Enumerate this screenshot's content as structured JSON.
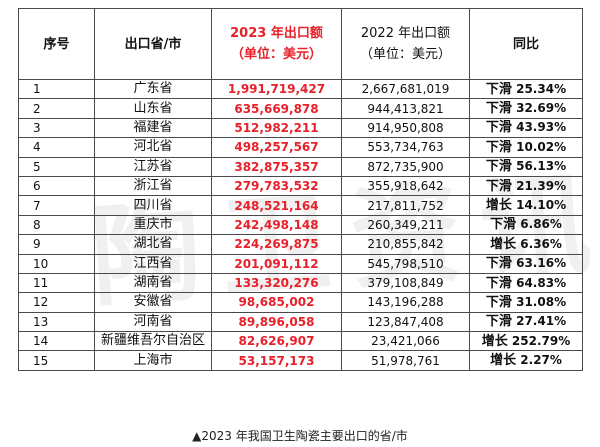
{
  "header": {
    "idx": "序号",
    "province": "出口省/市",
    "y2023_line1": "2023 年出口额",
    "y2023_line2": "（单位：美元）",
    "y2022_line1": "2022 年出口额",
    "y2022_line2": "（单位：美元）",
    "yoy": "同比"
  },
  "rows": [
    {
      "idx": "1",
      "province": "广东省",
      "v2023": "1,991,719,427",
      "v2022": "2,667,681,019",
      "dir": "下滑",
      "pct": "25.34%"
    },
    {
      "idx": "2",
      "province": "山东省",
      "v2023": "635,669,878",
      "v2022": "944,413,821",
      "dir": "下滑",
      "pct": "32.69%"
    },
    {
      "idx": "3",
      "province": "福建省",
      "v2023": "512,982,211",
      "v2022": "914,950,808",
      "dir": "下滑",
      "pct": "43.93%"
    },
    {
      "idx": "4",
      "province": "河北省",
      "v2023": "498,257,567",
      "v2022": "553,734,763",
      "dir": "下滑",
      "pct": "10.02%"
    },
    {
      "idx": "5",
      "province": "江苏省",
      "v2023": "382,875,357",
      "v2022": "872,735,900",
      "dir": "下滑",
      "pct": "56.13%"
    },
    {
      "idx": "6",
      "province": "浙江省",
      "v2023": "279,783,532",
      "v2022": "355,918,642",
      "dir": "下滑",
      "pct": "21.39%"
    },
    {
      "idx": "7",
      "province": "四川省",
      "v2023": "248,521,164",
      "v2022": "217,811,752",
      "dir": "增长",
      "pct": "14.10%"
    },
    {
      "idx": "8",
      "province": "重庆市",
      "v2023": "242,498,148",
      "v2022": "260,349,211",
      "dir": "下滑",
      "pct": "6.86%"
    },
    {
      "idx": "9",
      "province": "湖北省",
      "v2023": "224,269,875",
      "v2022": "210,855,842",
      "dir": "增长",
      "pct": "6.36%"
    },
    {
      "idx": "10",
      "province": "江西省",
      "v2023": "201,091,112",
      "v2022": "545,798,510",
      "dir": "下滑",
      "pct": "63.16%"
    },
    {
      "idx": "11",
      "province": "湖南省",
      "v2023": "133,320,276",
      "v2022": "379,108,849",
      "dir": "下滑",
      "pct": "64.83%"
    },
    {
      "idx": "12",
      "province": "安徽省",
      "v2023": "98,685,002",
      "v2022": "143,196,288",
      "dir": "下滑",
      "pct": "31.08%"
    },
    {
      "idx": "13",
      "province": "河南省",
      "v2023": "89,896,058",
      "v2022": "123,847,408",
      "dir": "下滑",
      "pct": "27.41%"
    },
    {
      "idx": "14",
      "province": "新疆维吾尔自治区",
      "v2023": "82,626,907",
      "v2022": "23,421,066",
      "dir": "增长",
      "pct": "252.79%"
    },
    {
      "idx": "15",
      "province": "上海市",
      "v2023": "53,157,173",
      "v2022": "51,978,761",
      "dir": "增长",
      "pct": "2.27%"
    }
  ],
  "caption": "▲2023 年我国卫生陶瓷主要出口的省/市",
  "watermark": "陶卫资讯",
  "colors": {
    "accent_red": "#e8202a",
    "border": "#4a4a4a"
  }
}
